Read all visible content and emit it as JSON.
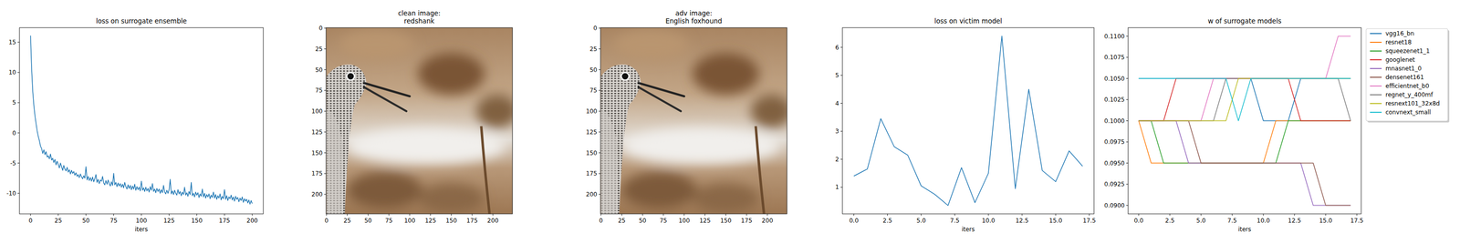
{
  "chart_data": [
    {
      "type": "line",
      "title": "loss on surrogate ensemble",
      "xlabel": "iters",
      "color": "#1f77b4",
      "grid": false,
      "x": [
        0,
        1,
        2,
        3,
        4,
        5,
        6,
        7,
        8,
        9,
        10,
        11,
        12,
        13,
        14,
        15,
        16,
        17,
        18,
        19,
        20,
        21,
        22,
        23,
        24,
        25,
        26,
        27,
        28,
        29,
        30,
        31,
        32,
        33,
        34,
        35,
        36,
        37,
        38,
        39,
        40,
        41,
        42,
        43,
        44,
        45,
        46,
        47,
        48,
        49,
        50,
        51,
        52,
        53,
        54,
        55,
        56,
        57,
        58,
        59,
        60,
        61,
        62,
        63,
        64,
        65,
        66,
        67,
        68,
        69,
        70,
        71,
        72,
        73,
        74,
        75,
        76,
        77,
        78,
        79,
        80,
        81,
        82,
        83,
        84,
        85,
        86,
        87,
        88,
        89,
        90,
        91,
        92,
        93,
        94,
        95,
        96,
        97,
        98,
        99,
        100,
        101,
        102,
        103,
        104,
        105,
        106,
        107,
        108,
        109,
        110,
        111,
        112,
        113,
        114,
        115,
        116,
        117,
        118,
        119,
        120,
        121,
        122,
        123,
        124,
        125,
        126,
        127,
        128,
        129,
        130,
        131,
        132,
        133,
        134,
        135,
        136,
        137,
        138,
        139,
        140,
        141,
        142,
        143,
        144,
        145,
        146,
        147,
        148,
        149,
        150,
        151,
        152,
        153,
        154,
        155,
        156,
        157,
        158,
        159,
        160,
        161,
        162,
        163,
        164,
        165,
        166,
        167,
        168,
        169,
        170,
        171,
        172,
        173,
        174,
        175,
        176,
        177,
        178,
        179,
        180,
        181,
        182,
        183,
        184,
        185,
        186,
        187,
        188,
        189,
        190,
        191,
        192,
        193,
        194,
        195,
        196,
        197,
        198,
        199,
        200
      ],
      "values": [
        16.1,
        10.5,
        6.8,
        4.5,
        2.8,
        1.5,
        0.3,
        -0.6,
        -1.3,
        -2.2,
        -2.6,
        -3.4,
        -2.8,
        -3.6,
        -3.1,
        -4.0,
        -3.8,
        -4.3,
        -3.5,
        -4.5,
        -4.2,
        -4.9,
        -4.4,
        -5.3,
        -4.7,
        -5.2,
        -5.8,
        -5.0,
        -5.6,
        -6.2,
        -5.4,
        -6.0,
        -6.3,
        -5.7,
        -6.5,
        -6.1,
        -6.8,
        -6.2,
        -6.7,
        -6.4,
        -7.0,
        -6.6,
        -7.2,
        -6.9,
        -7.4,
        -6.8,
        -7.3,
        -7.6,
        -7.1,
        -7.5,
        -5.6,
        -7.8,
        -7.2,
        -7.9,
        -7.4,
        -8.0,
        -7.3,
        -8.1,
        -7.6,
        -6.9,
        -8.2,
        -7.7,
        -8.4,
        -7.8,
        -8.0,
        -7.2,
        -8.3,
        -8.6,
        -7.9,
        -8.5,
        -7.8,
        -8.4,
        -8.8,
        -8.1,
        -8.7,
        -6.7,
        -8.6,
        -8.2,
        -8.9,
        -8.3,
        -8.8,
        -8.4,
        -9.0,
        -8.5,
        -9.1,
        -8.2,
        -8.9,
        -9.3,
        -8.6,
        -9.2,
        -8.7,
        -9.4,
        -8.8,
        -9.3,
        -8.5,
        -9.5,
        -8.9,
        -9.4,
        -9.0,
        -9.6,
        -8.0,
        -9.5,
        -9.1,
        -9.7,
        -9.0,
        -9.6,
        -9.2,
        -9.8,
        -8.9,
        -9.5,
        -8.4,
        -9.7,
        -9.3,
        -9.9,
        -9.2,
        -9.7,
        -9.3,
        -10.0,
        -9.4,
        -9.9,
        -8.7,
        -9.8,
        -10.1,
        -9.5,
        -10.0,
        -9.4,
        -7.7,
        -10.1,
        -9.6,
        -10.2,
        -9.5,
        -10.0,
        -10.3,
        -9.4,
        -10.1,
        -9.7,
        -10.4,
        -9.8,
        -10.2,
        -9.0,
        -10.3,
        -9.9,
        -10.5,
        -9.7,
        -10.2,
        -8.2,
        -10.4,
        -10.0,
        -10.6,
        -9.8,
        -10.3,
        -9.9,
        -10.7,
        -10.1,
        -10.5,
        -9.3,
        -10.6,
        -10.0,
        -10.8,
        -10.2,
        -10.6,
        -10.1,
        -10.9,
        -10.3,
        -10.7,
        -9.8,
        -10.8,
        -10.2,
        -11.0,
        -10.4,
        -10.8,
        -10.1,
        -11.1,
        -10.5,
        -10.9,
        -9.4,
        -11.0,
        -10.4,
        -11.2,
        -10.6,
        -10.9,
        -10.3,
        -11.1,
        -10.6,
        -11.3,
        -10.5,
        -11.0,
        -10.7,
        -11.4,
        -10.8,
        -11.2,
        -10.6,
        -11.5,
        -10.9,
        -11.3,
        -11.0,
        -11.6,
        -11.1,
        -11.8,
        -11.2,
        -11.7
      ],
      "xlim": [
        -10,
        210
      ],
      "xticks": [
        0,
        25,
        50,
        75,
        100,
        125,
        150,
        175,
        200
      ],
      "ylim": [
        -13.4,
        17.4
      ],
      "yticks": [
        -10,
        -5,
        0,
        5,
        10,
        15
      ]
    },
    {
      "type": "image",
      "title": "clean image:\nredshank",
      "xlim": [
        -0.5,
        223.5
      ],
      "xticks": [
        0,
        25,
        50,
        75,
        100,
        125,
        150,
        175,
        200
      ],
      "ylim": [
        223.5,
        -0.5
      ],
      "yticks": [
        0,
        25,
        50,
        75,
        100,
        125,
        150,
        175,
        200
      ]
    },
    {
      "type": "image",
      "title": "adv image:\nEnglish foxhound",
      "xlim": [
        -0.5,
        223.5
      ],
      "xticks": [
        0,
        25,
        50,
        75,
        100,
        125,
        150,
        175,
        200
      ],
      "ylim": [
        223.5,
        -0.5
      ],
      "yticks": [
        0,
        25,
        50,
        75,
        100,
        125,
        150,
        175,
        200
      ]
    },
    {
      "type": "line",
      "title": "loss on victim model",
      "xlabel": "iters",
      "color": "#1f77b4",
      "grid": false,
      "x": [
        0,
        1,
        2,
        3,
        4,
        5,
        6,
        7,
        8,
        9,
        10,
        11,
        12,
        13,
        14,
        15,
        16,
        17
      ],
      "values": [
        1.4,
        1.65,
        3.45,
        2.45,
        2.15,
        1.05,
        0.75,
        0.35,
        1.7,
        0.45,
        1.5,
        6.4,
        0.95,
        4.5,
        1.6,
        1.2,
        2.3,
        1.75
      ],
      "xlim": [
        -0.85,
        17.85
      ],
      "xticks": [
        {
          "value": 0,
          "label": "0.0"
        },
        2.5,
        {
          "value": 5,
          "label": "5.0"
        },
        7.5,
        {
          "value": 10,
          "label": "10.0"
        },
        12.5,
        {
          "value": 15,
          "label": "15.0"
        },
        17.5
      ],
      "ylim": [
        0.05,
        6.7
      ],
      "yticks": [
        1,
        2,
        3,
        4,
        5,
        6
      ]
    },
    {
      "type": "line",
      "title": "w of surrogate models",
      "xlabel": "iters",
      "grid": false,
      "legend": "right",
      "x": [
        0,
        1,
        2,
        3,
        4,
        5,
        6,
        7,
        8,
        9,
        10,
        11,
        12,
        13,
        14,
        15,
        16,
        17
      ],
      "series": [
        {
          "name": "vgg16_bn",
          "color": "#1f77b4",
          "values": [
            0.105,
            0.105,
            0.105,
            0.105,
            0.105,
            0.105,
            0.105,
            0.105,
            0.105,
            0.105,
            0.1,
            0.1,
            0.1,
            0.105,
            0.105,
            0.105,
            0.105,
            0.105
          ]
        },
        {
          "name": "resnet18",
          "color": "#ff7f0e",
          "values": [
            0.1,
            0.095,
            0.095,
            0.095,
            0.095,
            0.095,
            0.095,
            0.095,
            0.095,
            0.095,
            0.095,
            0.1,
            0.1,
            0.1,
            0.1,
            0.1,
            0.1,
            0.1
          ]
        },
        {
          "name": "squeezenet1_1",
          "color": "#2ca02c",
          "values": [
            0.1,
            0.1,
            0.095,
            0.095,
            0.095,
            0.095,
            0.095,
            0.095,
            0.095,
            0.095,
            0.095,
            0.095,
            0.1,
            0.1,
            0.1,
            0.1,
            0.1,
            0.1
          ]
        },
        {
          "name": "googlenet",
          "color": "#d62728",
          "values": [
            0.1,
            0.1,
            0.1,
            0.105,
            0.105,
            0.105,
            0.105,
            0.105,
            0.105,
            0.105,
            0.105,
            0.105,
            0.105,
            0.1,
            0.1,
            0.1,
            0.1,
            0.1
          ]
        },
        {
          "name": "mnasnet1_0",
          "color": "#9467bd",
          "values": [
            0.1,
            0.1,
            0.1,
            0.1,
            0.095,
            0.095,
            0.095,
            0.095,
            0.095,
            0.095,
            0.095,
            0.095,
            0.095,
            0.095,
            0.09,
            0.09,
            0.09,
            0.09
          ]
        },
        {
          "name": "densenet161",
          "color": "#8c564b",
          "values": [
            0.1,
            0.1,
            0.1,
            0.1,
            0.1,
            0.095,
            0.095,
            0.095,
            0.095,
            0.095,
            0.095,
            0.095,
            0.095,
            0.095,
            0.095,
            0.09,
            0.09,
            0.09
          ]
        },
        {
          "name": "efficientnet_b0",
          "color": "#e377c2",
          "values": [
            0.1,
            0.1,
            0.1,
            0.1,
            0.1,
            0.1,
            0.105,
            0.105,
            0.105,
            0.105,
            0.105,
            0.105,
            0.105,
            0.105,
            0.105,
            0.105,
            0.11,
            0.11
          ]
        },
        {
          "name": "regnet_y_400mf",
          "color": "#7f7f7f",
          "values": [
            0.1,
            0.1,
            0.1,
            0.1,
            0.1,
            0.1,
            0.1,
            0.105,
            0.105,
            0.105,
            0.105,
            0.105,
            0.105,
            0.105,
            0.105,
            0.105,
            0.105,
            0.1
          ]
        },
        {
          "name": "resnext101_32x8d",
          "color": "#bcbd22",
          "values": [
            0.1,
            0.1,
            0.1,
            0.1,
            0.1,
            0.1,
            0.1,
            0.1,
            0.105,
            0.105,
            0.105,
            0.105,
            0.105,
            0.105,
            0.105,
            0.105,
            0.105,
            0.105
          ]
        },
        {
          "name": "convnext_small",
          "color": "#17becf",
          "values": [
            0.105,
            0.105,
            0.105,
            0.105,
            0.105,
            0.105,
            0.105,
            0.105,
            0.1,
            0.105,
            0.105,
            0.105,
            0.105,
            0.105,
            0.105,
            0.105,
            0.105,
            0.105
          ]
        }
      ],
      "xlim": [
        -0.85,
        17.85
      ],
      "xticks": [
        {
          "value": 0,
          "label": "0.0"
        },
        2.5,
        {
          "value": 5,
          "label": "5.0"
        },
        7.5,
        {
          "value": 10,
          "label": "10.0"
        },
        12.5,
        {
          "value": 15,
          "label": "15.0"
        },
        17.5
      ],
      "ylim": [
        0.089,
        0.111
      ],
      "yticks": [
        {
          "value": 0.09,
          "label": "0.0900"
        },
        {
          "value": 0.0925,
          "label": "0.0925"
        },
        {
          "value": 0.095,
          "label": "0.0950"
        },
        {
          "value": 0.0975,
          "label": "0.0975"
        },
        {
          "value": 0.1,
          "label": "0.1000"
        },
        {
          "value": 0.1025,
          "label": "0.1025"
        },
        {
          "value": 0.105,
          "label": "0.1050"
        },
        {
          "value": 0.1075,
          "label": "0.1075"
        },
        {
          "value": 0.11,
          "label": "0.1100"
        }
      ]
    }
  ]
}
